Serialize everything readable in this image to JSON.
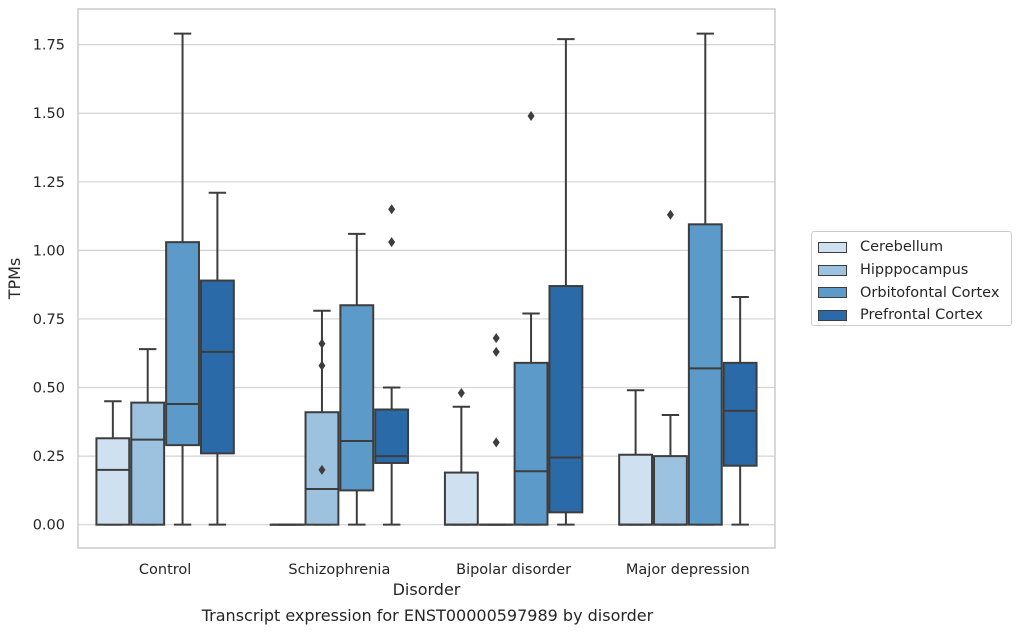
{
  "chart_data": {
    "type": "boxplot",
    "xlabel": "Disorder",
    "ylabel": "TPMs",
    "ylim": [
      -0.085,
      1.88
    ],
    "yticks": [
      0,
      0.25,
      0.5,
      0.75,
      1.0,
      1.25,
      1.5,
      1.75
    ],
    "ytick_labels": [
      "0.00",
      "0.25",
      "0.50",
      "0.75",
      "1.00",
      "1.25",
      "1.50",
      "1.75"
    ],
    "grid": "horizontal",
    "legend_position": "right",
    "categories": [
      "Control",
      "Schizophrenia",
      "Bipolar disorder",
      "Major depression"
    ],
    "series": [
      {
        "name": "Cerebellum",
        "color": "#cfe0f0",
        "boxes": [
          {
            "whislo": 0,
            "q1": 0,
            "med": 0.2,
            "q3": 0.315,
            "whishi": 0.45,
            "fliers": []
          },
          {
            "whislo": 0,
            "q1": 0,
            "med": 0,
            "q3": 0,
            "whishi": 0,
            "fliers": []
          },
          {
            "whislo": 0,
            "q1": 0,
            "med": 0,
            "q3": 0.19,
            "whishi": 0.43,
            "fliers": [
              0.48
            ]
          },
          {
            "whislo": 0,
            "q1": 0,
            "med": 0,
            "q3": 0.255,
            "whishi": 0.49,
            "fliers": []
          }
        ]
      },
      {
        "name": "Hipppocampus",
        "color": "#9dc2df",
        "boxes": [
          {
            "whislo": 0,
            "q1": 0,
            "med": 0.31,
            "q3": 0.445,
            "whishi": 0.64,
            "fliers": []
          },
          {
            "whislo": 0,
            "q1": 0,
            "med": 0.13,
            "q3": 0.41,
            "whishi": 0.78,
            "fliers": [
              0.2,
              0.58,
              0.66
            ]
          },
          {
            "whislo": 0,
            "q1": 0,
            "med": 0,
            "q3": 0,
            "whishi": 0,
            "fliers": [
              0.3,
              0.63,
              0.68
            ]
          },
          {
            "whislo": 0,
            "q1": 0,
            "med": 0,
            "q3": 0.25,
            "whishi": 0.4,
            "fliers": [
              1.13
            ]
          }
        ]
      },
      {
        "name": "Orbitofontal Cortex",
        "color": "#5b9ac9",
        "boxes": [
          {
            "whislo": 0,
            "q1": 0.29,
            "med": 0.44,
            "q3": 1.03,
            "whishi": 1.79,
            "fliers": []
          },
          {
            "whislo": 0,
            "q1": 0.125,
            "med": 0.305,
            "q3": 0.8,
            "whishi": 1.06,
            "fliers": []
          },
          {
            "whislo": 0,
            "q1": 0,
            "med": 0.195,
            "q3": 0.59,
            "whishi": 0.77,
            "fliers": [
              1.49
            ]
          },
          {
            "whislo": 0,
            "q1": 0,
            "med": 0.57,
            "q3": 1.095,
            "whishi": 1.79,
            "fliers": []
          }
        ]
      },
      {
        "name": "Prefrontal Cortex",
        "color": "#2a6aa8",
        "boxes": [
          {
            "whislo": 0,
            "q1": 0.26,
            "med": 0.63,
            "q3": 0.89,
            "whishi": 1.21,
            "fliers": []
          },
          {
            "whislo": 0,
            "q1": 0.225,
            "med": 0.25,
            "q3": 0.42,
            "whishi": 0.5,
            "fliers": [
              1.03,
              1.15
            ]
          },
          {
            "whislo": 0,
            "q1": 0.045,
            "med": 0.245,
            "q3": 0.87,
            "whishi": 1.77,
            "fliers": []
          },
          {
            "whislo": 0,
            "q1": 0.215,
            "med": 0.415,
            "q3": 0.59,
            "whishi": 0.83,
            "fliers": []
          }
        ]
      }
    ]
  },
  "caption": "Transcript expression for ENST00000597989 by disorder"
}
